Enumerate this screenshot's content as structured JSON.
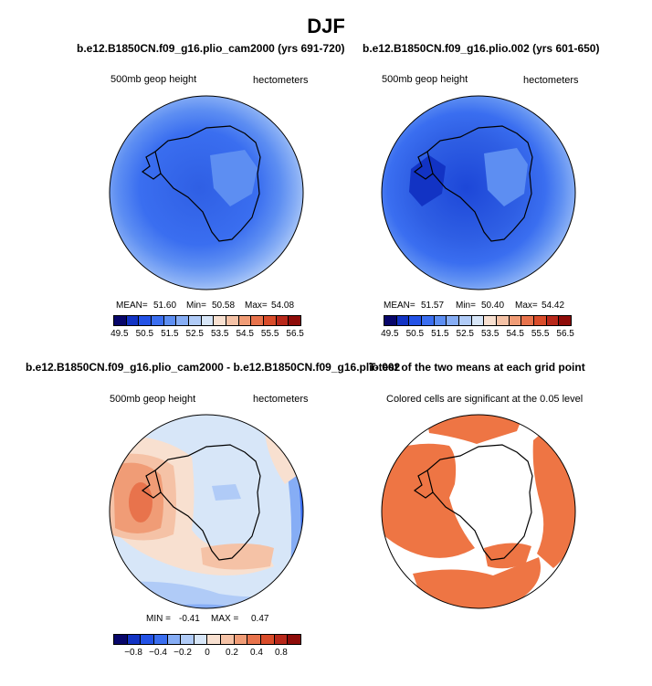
{
  "figure": {
    "title": "DJF"
  },
  "panels": {
    "top_left": {
      "title": "b.e12.B1850CN.f09_g16.plio_cam2000 (yrs 691-720)",
      "left_label": "500mb geop height",
      "right_label": "hectometers",
      "mean_label": "MEAN=",
      "mean": "51.60",
      "min_label": "Min=",
      "min": "50.58",
      "max_label": "Max=",
      "max": "54.08"
    },
    "top_right": {
      "title": "b.e12.B1850CN.f09_g16.plio.002 (yrs 601-650)",
      "left_label": "500mb geop height",
      "right_label": "hectometers",
      "mean_label": "MEAN=",
      "mean": "51.57",
      "min_label": "Min=",
      "min": "50.40",
      "max_label": "Max=",
      "max": "54.42"
    },
    "bottom_left": {
      "title": "b.e12.B1850CN.f09_g16.plio_cam2000 - b.e12.B1850CN.f09_g16.plio.002",
      "left_label": "500mb geop height",
      "right_label": "hectometers",
      "min_label": "MIN =",
      "min": "-0.41",
      "max_label": "MAX =",
      "max": "0.47"
    },
    "bottom_right": {
      "title": "T-test of the two means at each grid point",
      "subtitle": "Colored cells are significant at the 0.05 level"
    }
  },
  "chart_data": [
    {
      "type": "heatmap",
      "title": "b.e12.B1850CN.f09_g16.plio_cam2000 (yrs 691-720)",
      "variable": "500mb geop height",
      "units": "hectometers",
      "mean": 51.6,
      "min": 50.58,
      "max": 54.08,
      "colorbar_ticks": [
        "49.5",
        "50.5",
        "51.5",
        "52.5",
        "53.5",
        "54.5",
        "55.5",
        "56.5"
      ]
    },
    {
      "type": "heatmap",
      "title": "b.e12.B1850CN.f09_g16.plio.002 (yrs 601-650)",
      "variable": "500mb geop height",
      "units": "hectometers",
      "mean": 51.57,
      "min": 50.4,
      "max": 54.42,
      "colorbar_ticks": [
        "49.5",
        "50.5",
        "51.5",
        "52.5",
        "53.5",
        "54.5",
        "55.5",
        "56.5"
      ]
    },
    {
      "type": "heatmap",
      "title": "b.e12.B1850CN.f09_g16.plio_cam2000 - b.e12.B1850CN.f09_g16.plio.002",
      "variable": "500mb geop height",
      "units": "hectometers",
      "min": -0.41,
      "max": 0.47,
      "colorbar_ticks": [
        "−0.8",
        "−0.4",
        "−0.2",
        "0",
        "0.2",
        "0.4",
        "0.8"
      ]
    },
    {
      "type": "heatmap",
      "title": "T-test of the two means at each grid point",
      "note": "Colored cells are significant at the 0.05 level",
      "significance_level": 0.05
    }
  ],
  "colorbars": {
    "absolute": {
      "colors": [
        "#08066a",
        "#1233c4",
        "#2352e6",
        "#3a6ef0",
        "#5d8ef2",
        "#86adf5",
        "#b0cbf7",
        "#d7e6f8",
        "#f8e0d0",
        "#f5c2a6",
        "#f09c76",
        "#e8734c",
        "#d94c2a",
        "#b8281a",
        "#8e0c09"
      ],
      "ticks": [
        "49.5",
        "50.5",
        "51.5",
        "52.5",
        "53.5",
        "54.5",
        "55.5",
        "56.5"
      ]
    },
    "difference": {
      "colors": [
        "#08066a",
        "#1233c4",
        "#2352e6",
        "#3a6ef0",
        "#86adf5",
        "#b0cbf7",
        "#d7e6f8",
        "#f8e0d0",
        "#f5c2a6",
        "#f09c76",
        "#e8734c",
        "#d94c2a",
        "#b8281a",
        "#8e0c09"
      ],
      "ticks": [
        "−0.8",
        "−0.4",
        "−0.2",
        "0",
        "0.2",
        "0.4",
        "0.8"
      ]
    },
    "significance_color": "#ee7544"
  }
}
